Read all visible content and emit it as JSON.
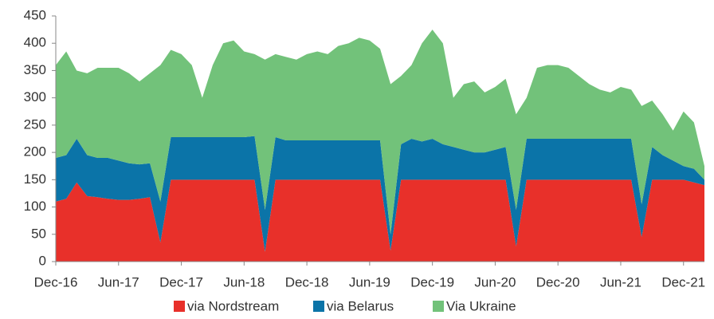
{
  "chart_data": {
    "type": "stacked_area",
    "categories": [
      "Dec-16",
      null,
      null,
      null,
      null,
      null,
      "Jun-17",
      null,
      null,
      null,
      null,
      null,
      "Dec-17",
      null,
      null,
      null,
      null,
      null,
      "Jun-18",
      null,
      null,
      null,
      null,
      null,
      "Dec-18",
      null,
      null,
      null,
      null,
      null,
      "Jun-19",
      null,
      null,
      null,
      null,
      null,
      "Dec-19",
      null,
      null,
      null,
      null,
      null,
      "Jun-20",
      null,
      null,
      null,
      null,
      null,
      "Dec-20",
      null,
      null,
      null,
      null,
      null,
      "Jun-21",
      null,
      null,
      null,
      null,
      null,
      "Dec-21",
      null,
      null
    ],
    "series": [
      {
        "name": "via Nordstream",
        "color": "#e8302a",
        "values": [
          110,
          115,
          145,
          120,
          118,
          115,
          113,
          113,
          115,
          118,
          35,
          150,
          150,
          150,
          150,
          150,
          150,
          150,
          150,
          150,
          18,
          150,
          150,
          150,
          150,
          150,
          150,
          150,
          150,
          150,
          150,
          150,
          20,
          150,
          150,
          150,
          150,
          150,
          150,
          150,
          150,
          150,
          150,
          150,
          28,
          150,
          150,
          150,
          150,
          150,
          150,
          150,
          150,
          150,
          150,
          150,
          45,
          150,
          150,
          150,
          150,
          145,
          140
        ]
      },
      {
        "name": "via Belarus",
        "color": "#0b74a8",
        "values": [
          80,
          80,
          80,
          75,
          72,
          75,
          72,
          67,
          63,
          62,
          75,
          78,
          78,
          78,
          78,
          78,
          78,
          78,
          78,
          80,
          77,
          78,
          72,
          72,
          72,
          72,
          72,
          72,
          72,
          72,
          72,
          72,
          30,
          65,
          75,
          70,
          75,
          65,
          60,
          55,
          50,
          50,
          55,
          60,
          67,
          75,
          75,
          75,
          75,
          75,
          75,
          75,
          75,
          75,
          75,
          75,
          60,
          60,
          45,
          35,
          25,
          25,
          10
        ]
      },
      {
        "name": "Via Ukraine",
        "color": "#72c27a",
        "values": [
          170,
          190,
          125,
          150,
          165,
          165,
          170,
          165,
          152,
          165,
          250,
          160,
          152,
          132,
          72,
          132,
          172,
          177,
          157,
          150,
          275,
          152,
          153,
          148,
          158,
          163,
          158,
          173,
          178,
          188,
          183,
          168,
          275,
          125,
          135,
          180,
          200,
          185,
          90,
          120,
          130,
          110,
          115,
          125,
          175,
          75,
          130,
          135,
          135,
          130,
          115,
          100,
          90,
          85,
          95,
          90,
          180,
          85,
          75,
          55,
          100,
          85,
          25
        ]
      }
    ],
    "ylim": [
      0,
      450
    ],
    "yticks": [
      0,
      50,
      100,
      150,
      200,
      250,
      300,
      350,
      400,
      450
    ],
    "grid": false,
    "legend": "bottom"
  }
}
